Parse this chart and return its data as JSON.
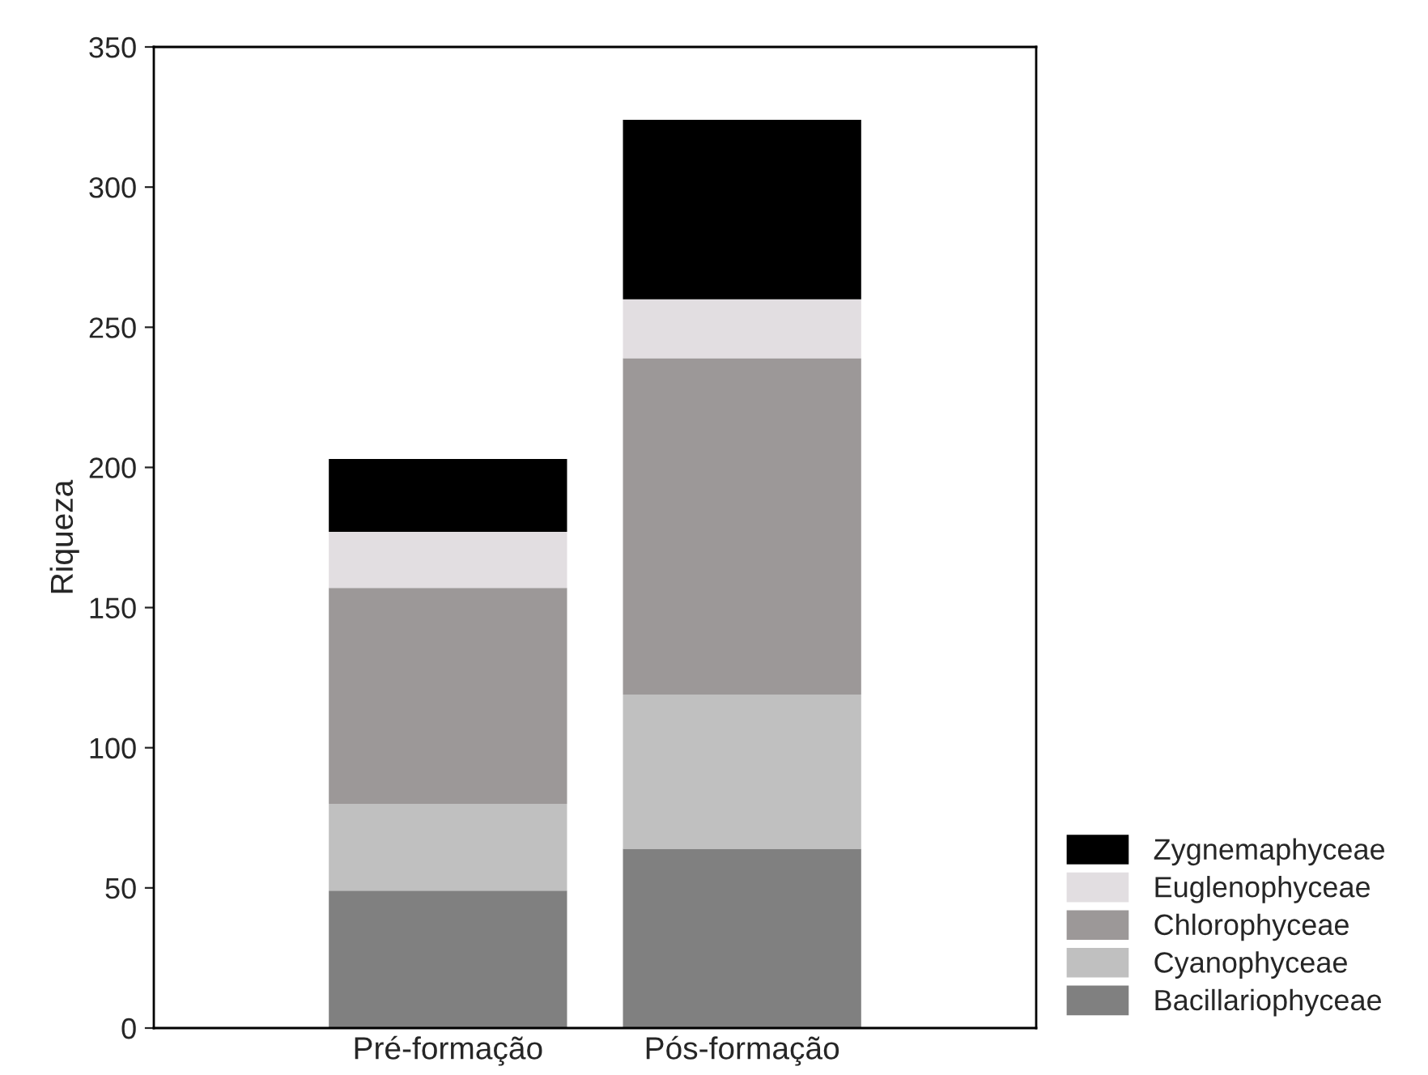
{
  "chart_data": {
    "type": "bar",
    "ylabel": "Riqueza",
    "categories": [
      "Pré-formação",
      "Pós-formação"
    ],
    "stacked": true,
    "series": [
      {
        "name": "Bacillariophyceae",
        "color": "#808080",
        "values": [
          49,
          64
        ]
      },
      {
        "name": "Cyanophyceae",
        "color": "#c0c0c0",
        "values": [
          31,
          55
        ]
      },
      {
        "name": "Chlorophyceae",
        "color": "#9c9898",
        "values": [
          77,
          120
        ]
      },
      {
        "name": "Euglenophyceae",
        "color": "#e2dee1",
        "values": [
          20,
          21
        ]
      },
      {
        "name": "Zygnemaphyceae",
        "color": "#000000",
        "values": [
          26,
          64
        ]
      }
    ],
    "ylim": [
      0,
      350
    ],
    "yticks": [
      0,
      50,
      100,
      150,
      200,
      250,
      300,
      350
    ],
    "grid": false,
    "legend": "bottom right"
  }
}
